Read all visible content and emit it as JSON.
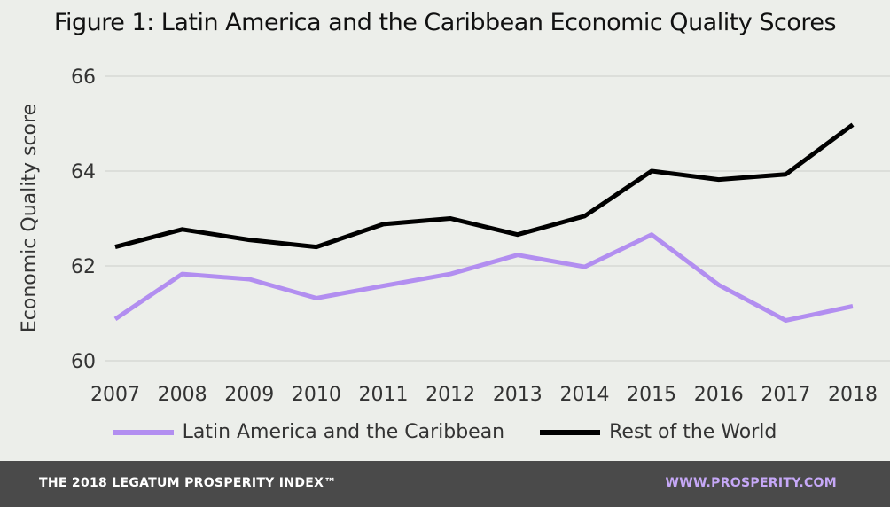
{
  "chart_data": {
    "type": "line",
    "title": "Figure 1: Latin America and the Caribbean Economic Quality Scores",
    "xlabel": "",
    "ylabel": "Economic Quality score",
    "categories": [
      "2007",
      "2008",
      "2009",
      "2010",
      "2011",
      "2012",
      "2013",
      "2014",
      "2015",
      "2016",
      "2017",
      "2018"
    ],
    "yticks": [
      60,
      62,
      64,
      66
    ],
    "ylim": [
      60,
      66
    ],
    "grid": true,
    "legend_position": "bottom",
    "series": [
      {
        "name": "Latin America and the Caribbean",
        "color": "#b28ef0",
        "values": [
          60.88,
          61.83,
          61.72,
          61.32,
          61.58,
          61.83,
          62.23,
          61.98,
          62.66,
          61.6,
          60.85,
          61.15
        ]
      },
      {
        "name": "Rest of the World",
        "color": "#000000",
        "values": [
          62.4,
          62.77,
          62.55,
          62.4,
          62.88,
          63.0,
          62.66,
          63.05,
          64.0,
          63.82,
          63.93,
          64.98
        ]
      }
    ]
  },
  "footer": {
    "left": "THE 2018 LEGATUM PROSPERITY INDEX™",
    "right": "WWW.PROSPERITY.COM",
    "right_color": "#c6a8f7"
  }
}
